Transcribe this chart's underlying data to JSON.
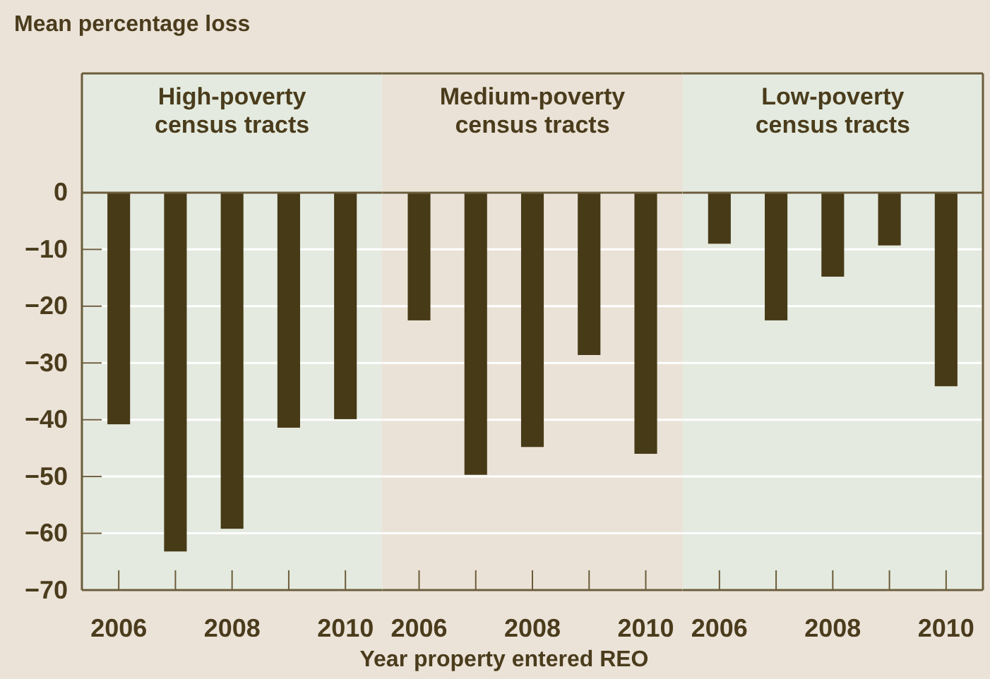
{
  "chart_data": [
    {
      "type": "bar",
      "title": "High-poverty census tracts",
      "ylabel": "Mean percentage loss",
      "categories": [
        "2006",
        null,
        "2008",
        null,
        "2010"
      ],
      "values": [
        -40.8,
        -63.2,
        -59.2,
        -41.4,
        -39.9
      ],
      "ref_lines": [
        {
          "axis": "y",
          "value": 0
        }
      ],
      "color": "#473a17",
      "ylim": [
        -70,
        21
      ],
      "yticks": [
        -70,
        -60,
        -50,
        -40,
        -30,
        -20,
        -10,
        0
      ],
      "grid": "y"
    },
    {
      "type": "bar",
      "title": "Medium-poverty census tracts",
      "xlabel": "Year property entered REO",
      "categories": [
        "2006",
        null,
        "2008",
        null,
        "2010"
      ],
      "values": [
        -22.5,
        -49.7,
        -44.8,
        -28.6,
        -46.0
      ],
      "ref_lines": [
        {
          "axis": "y",
          "value": 0
        }
      ],
      "color": "#473a17",
      "ylim": [
        -70,
        21
      ],
      "yticks": [
        -70,
        -60,
        -50,
        -40,
        -30,
        -20,
        -10,
        0
      ],
      "grid": "y",
      "tick_labels": "x"
    },
    {
      "type": "bar",
      "title": "Low-poverty census tracts",
      "categories": [
        "2006",
        null,
        "2008",
        null,
        "2010"
      ],
      "values": [
        -9.0,
        -22.5,
        -14.8,
        -9.3,
        -34.1
      ],
      "ref_lines": [
        {
          "axis": "y",
          "value": 0
        }
      ],
      "color": "#473a17",
      "ylim": [
        -70,
        21
      ],
      "yticks": [
        -70,
        -60,
        -50,
        -40,
        -30,
        -20,
        -10,
        0
      ],
      "grid": "y",
      "tick_labels": "x"
    }
  ]
}
